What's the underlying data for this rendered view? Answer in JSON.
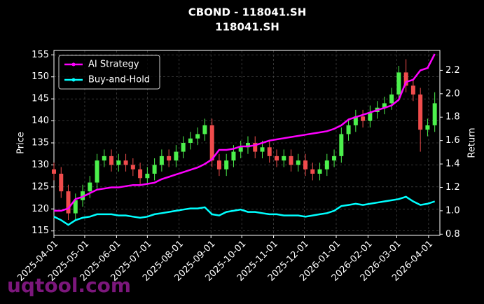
{
  "chart_data": {
    "type": "candlestick",
    "title": "CBOND - 118041.SH",
    "subtitle": "118041.SH",
    "ylabel": "Price",
    "y2label": "Return",
    "watermark": "uqtool.com",
    "x": [
      "2025-04-01",
      "2025-04-08",
      "2025-04-15",
      "2025-04-22",
      "2025-04-29",
      "2025-05-06",
      "2025-05-13",
      "2025-05-20",
      "2025-05-27",
      "2025-06-03",
      "2025-06-10",
      "2025-06-17",
      "2025-06-24",
      "2025-07-01",
      "2025-07-08",
      "2025-07-15",
      "2025-07-22",
      "2025-07-29",
      "2025-08-05",
      "2025-08-12",
      "2025-08-19",
      "2025-08-26",
      "2025-09-02",
      "2025-09-09",
      "2025-09-16",
      "2025-09-23",
      "2025-09-30",
      "2025-10-07",
      "2025-10-14",
      "2025-10-21",
      "2025-10-28",
      "2025-11-04",
      "2025-11-11",
      "2025-11-18",
      "2025-11-25",
      "2025-12-02",
      "2025-12-09",
      "2025-12-16",
      "2025-12-23",
      "2025-12-30",
      "2026-01-06",
      "2026-01-13",
      "2026-01-20",
      "2026-01-27",
      "2026-02-03",
      "2026-02-10",
      "2026-02-17",
      "2026-02-24",
      "2026-03-03",
      "2026-03-10",
      "2026-03-17",
      "2026-03-24",
      "2026-03-31",
      "2026-04-07"
    ],
    "open": [
      129,
      128,
      124,
      119,
      122,
      124,
      126,
      131,
      132,
      130,
      131,
      130,
      129,
      127,
      128,
      130,
      132,
      131,
      133,
      135,
      136,
      137,
      139,
      131,
      129,
      131,
      133,
      134,
      135,
      133,
      134,
      132,
      131,
      132,
      130,
      131,
      129,
      128,
      129,
      131,
      132,
      137,
      139,
      141,
      140,
      142,
      143,
      144,
      146,
      151,
      148,
      146,
      138,
      139
    ],
    "high": [
      130.5,
      129.5,
      125.5,
      123.5,
      125.5,
      127.5,
      132.5,
      133.5,
      133.5,
      132.5,
      132.5,
      131.5,
      130.5,
      129.5,
      131.5,
      133.5,
      133.5,
      134.5,
      136.5,
      137.5,
      138.5,
      140.5,
      140.5,
      132.5,
      132.5,
      134.5,
      135.5,
      136.5,
      136.5,
      135.5,
      135.5,
      133.5,
      133.5,
      133.5,
      132.5,
      132.5,
      130.5,
      130.5,
      132.5,
      133.5,
      138.5,
      140.5,
      142.5,
      142.5,
      143.5,
      144.5,
      145.5,
      147.5,
      152.5,
      154,
      149.5,
      147.5,
      140.5,
      146.5
    ],
    "low": [
      126.5,
      122.5,
      117.5,
      117.5,
      120.5,
      122.5,
      124.5,
      129.5,
      128.5,
      128.5,
      128.5,
      127.5,
      125.5,
      125.5,
      126.5,
      128.5,
      129.5,
      129.5,
      131.5,
      133.5,
      134.5,
      135.5,
      129.5,
      127.5,
      127.5,
      129.5,
      131.5,
      132.5,
      131.5,
      131.5,
      130.5,
      129.5,
      129.5,
      128.5,
      128.5,
      127.5,
      126.5,
      126.5,
      127.5,
      129.5,
      130.5,
      135.5,
      137.5,
      138.5,
      138.5,
      140.5,
      141.5,
      142.5,
      144.5,
      146.5,
      144.5,
      133,
      136.5,
      137.5
    ],
    "close": [
      128,
      124,
      119,
      122,
      124,
      126,
      131,
      132,
      130,
      131,
      130,
      129,
      127,
      128,
      130,
      132,
      131,
      133,
      135,
      136,
      137,
      139,
      131,
      129,
      131,
      133,
      134,
      135,
      133,
      134,
      132,
      131,
      132,
      130,
      131,
      129,
      128,
      129,
      131,
      132,
      137,
      139,
      141,
      140,
      142,
      143,
      144,
      146,
      151,
      148,
      146,
      138,
      139,
      144
    ],
    "up_color": "#4cf04c",
    "down_color": "#f04c4c",
    "series": [
      {
        "name": "AI Strategy",
        "color": "#ff00ff",
        "axis": "y2",
        "values": [
          1.0,
          1.0,
          1.02,
          1.1,
          1.12,
          1.15,
          1.18,
          1.19,
          1.2,
          1.2,
          1.21,
          1.22,
          1.22,
          1.23,
          1.24,
          1.27,
          1.29,
          1.31,
          1.33,
          1.35,
          1.37,
          1.4,
          1.44,
          1.52,
          1.52,
          1.53,
          1.55,
          1.55,
          1.56,
          1.58,
          1.6,
          1.61,
          1.62,
          1.63,
          1.64,
          1.65,
          1.66,
          1.67,
          1.68,
          1.7,
          1.73,
          1.78,
          1.8,
          1.82,
          1.84,
          1.86,
          1.88,
          1.9,
          1.95,
          2.1,
          2.12,
          2.2,
          2.22,
          2.34
        ]
      },
      {
        "name": "Buy-and-Hold",
        "color": "#00ffff",
        "axis": "y2",
        "values": [
          0.95,
          0.92,
          0.88,
          0.92,
          0.94,
          0.95,
          0.97,
          0.97,
          0.97,
          0.96,
          0.96,
          0.95,
          0.94,
          0.95,
          0.97,
          0.98,
          0.99,
          1.0,
          1.01,
          1.02,
          1.02,
          1.03,
          0.97,
          0.96,
          0.99,
          1.0,
          1.01,
          0.99,
          0.99,
          0.98,
          0.97,
          0.97,
          0.96,
          0.96,
          0.96,
          0.95,
          0.96,
          0.97,
          0.98,
          1.0,
          1.04,
          1.05,
          1.06,
          1.05,
          1.06,
          1.07,
          1.08,
          1.09,
          1.1,
          1.12,
          1.08,
          1.05,
          1.06,
          1.08
        ]
      }
    ],
    "xlim": [
      "2025-04-01",
      "2026-04-12"
    ],
    "xticks": [
      "2025-04-01",
      "2025-05-01",
      "2025-06-01",
      "2025-07-01",
      "2025-08-01",
      "2025-09-01",
      "2025-10-01",
      "2025-11-01",
      "2025-12-01",
      "2026-01-01",
      "2026-02-01",
      "2026-03-01",
      "2026-04-01"
    ],
    "ylim": [
      114,
      156
    ],
    "yticks": [
      115,
      120,
      125,
      130,
      135,
      140,
      145,
      150,
      155
    ],
    "y2lim": [
      0.79,
      2.37
    ],
    "y2ticks": [
      0.8,
      {
        "value": 1,
        "label": "1.0"
      },
      1.2,
      1.4,
      1.6,
      1.8,
      {
        "value": 2,
        "label": "2.0"
      },
      2.2
    ],
    "grid": true,
    "legend": "upper left"
  }
}
